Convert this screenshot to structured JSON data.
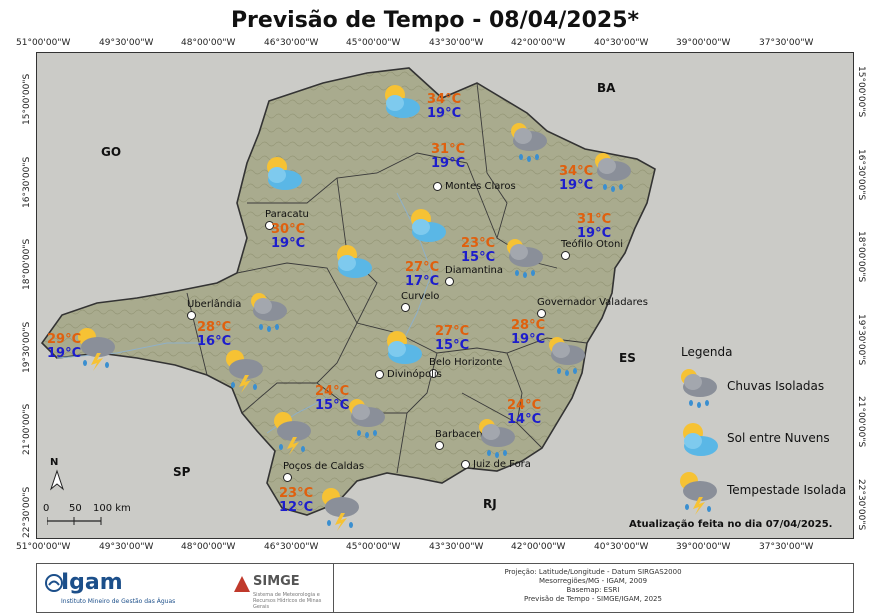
{
  "title": "Previsão de Tempo - 08/04/2025*",
  "ticks": {
    "top": [
      "51°00'00\"W",
      "49°30'00\"W",
      "48°00'00\"W",
      "46°30'00\"W",
      "45°00'00\"W",
      "43°30'00\"W",
      "42°00'00\"W",
      "40°30'00\"W",
      "39°00'00\"W",
      "37°30'00\"W"
    ],
    "bottom": [
      "51°00'00\"W",
      "49°30'00\"W",
      "48°00'00\"W",
      "46°30'00\"W",
      "45°00'00\"W",
      "43°30'00\"W",
      "42°00'00\"W",
      "40°30'00\"W",
      "39°00'00\"W",
      "37°30'00\"W"
    ],
    "left": [
      "15°00'00\"S",
      "16°30'00\"S",
      "18°00'00\"S",
      "19°30'00\"S",
      "21°00'00\"S",
      "22°30'00\"S"
    ],
    "right": [
      "15°00'00\"S",
      "16°30'00\"S",
      "18°00'00\"S",
      "19°30'00\"S",
      "21°00'00\"S",
      "22°30'00\"S"
    ]
  },
  "states": [
    "GO",
    "BA",
    "ES",
    "SP",
    "RJ"
  ],
  "cities": [
    "Montes Claros",
    "Paracatu",
    "Teófilo Otoni",
    "Diamantina",
    "Curvelo",
    "Uberlândia",
    "Governador Valadares",
    "Belo Horizonte",
    "Divinópolis",
    "Barbacena",
    "Poços de Caldas",
    "Juiz de Fora"
  ],
  "forecasts": [
    {
      "hi": "34°C",
      "lo": "19°C",
      "icon": "sun-cloud-icon"
    },
    {
      "hi": "31°C",
      "lo": "19°C",
      "icon": "rain-icon"
    },
    {
      "hi": "34°C",
      "lo": "19°C",
      "icon": "rain-icon"
    },
    {
      "hi": "31°C",
      "lo": "19°C",
      "icon": "sun-cloud-icon"
    },
    {
      "hi": "30°C",
      "lo": "19°C",
      "icon": "sun-cloud-icon"
    },
    {
      "hi": "23°C",
      "lo": "15°C",
      "icon": "rain-icon"
    },
    {
      "hi": "27°C",
      "lo": "17°C",
      "icon": "sun-cloud-icon"
    },
    {
      "hi": "28°C",
      "lo": "16°C",
      "icon": "rain-icon"
    },
    {
      "hi": "29°C",
      "lo": "19°C",
      "icon": "storm-icon"
    },
    {
      "hi": "27°C",
      "lo": "15°C",
      "icon": "sun-cloud-icon"
    },
    {
      "hi": "28°C",
      "lo": "19°C",
      "icon": "rain-icon"
    },
    {
      "hi": "24°C",
      "lo": "15°C",
      "icon": "rain-icon"
    },
    {
      "hi": "24°C",
      "lo": "14°C",
      "icon": "rain-icon"
    },
    {
      "hi": "23°C",
      "lo": "12°C",
      "icon": "storm-icon"
    }
  ],
  "legend": {
    "title": "Legenda",
    "items": [
      {
        "label": "Chuvas Isoladas",
        "icon": "rain-icon"
      },
      {
        "label": "Sol entre Nuvens",
        "icon": "sun-cloud-icon"
      },
      {
        "label": "Tempestade Isolada",
        "icon": "storm-icon"
      }
    ]
  },
  "scale": {
    "north": "N",
    "labels": [
      "0",
      "50",
      "100 km"
    ]
  },
  "update_note": "Atualização feita no dia 07/04/2025.",
  "footer": {
    "igam": "Igam",
    "igam_sub": "Instituto Mineiro de Gestão das Águas",
    "simge": "SIMGE",
    "simge_sub": "Sistema de Meteorologia e Recursos Hídricos de Minas Gerais",
    "meta": [
      "Projeção: Latitude/Longitude - Datum SIRGAS2000",
      "Mesorregiões/MG - IGAM, 2009",
      "Basemap: ESRI",
      "Previsão de Tempo - SIMGE/IGAM, 2025"
    ]
  },
  "colors": {
    "high": "#e0600e",
    "low": "#1d1dcc",
    "cloud_blue": "#5ab7e6",
    "cloud_gray": "#8a8f99",
    "sun": "#f6c234"
  }
}
